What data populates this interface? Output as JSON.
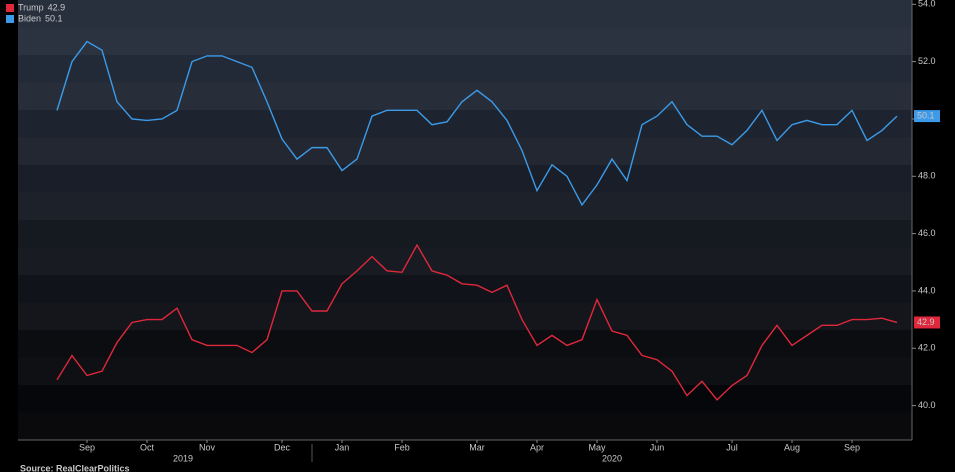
{
  "chart_data": {
    "type": "line",
    "categories": [
      null,
      null,
      "Sep",
      null,
      null,
      null,
      "Oct",
      null,
      null,
      null,
      "Nov",
      null,
      null,
      null,
      null,
      "Dec",
      null,
      null,
      null,
      "Jan",
      null,
      null,
      null,
      "Feb",
      null,
      null,
      null,
      null,
      "Mar",
      null,
      null,
      null,
      "Apr",
      null,
      null,
      null,
      "May",
      null,
      null,
      null,
      "Jun",
      null,
      null,
      null,
      null,
      "Jul",
      null,
      null,
      null,
      "Aug",
      null,
      null,
      null,
      "Sep",
      null,
      null,
      null
    ],
    "annotations": [
      "2019",
      "2020"
    ],
    "source": "Source: RealClearPolitics",
    "series": [
      {
        "name": "Trump",
        "color": "#e0283c",
        "values": [
          40.9,
          41.75,
          41.05,
          41.2,
          42.2,
          42.9,
          43.0,
          43.0,
          43.4,
          42.3,
          42.1,
          42.1,
          42.1,
          41.85,
          42.3,
          44.0,
          44.0,
          43.3,
          43.3,
          44.25,
          44.7,
          45.2,
          44.7,
          44.65,
          45.6,
          44.7,
          44.55,
          44.25,
          44.2,
          43.95,
          44.2,
          43.0,
          42.1,
          42.45,
          42.1,
          42.3,
          43.7,
          42.6,
          42.45,
          41.75,
          41.6,
          41.2,
          40.35,
          40.85,
          40.2,
          40.7,
          41.05,
          42.1,
          42.8,
          42.1,
          42.45,
          42.8,
          42.8,
          43.0,
          43.0,
          43.05,
          42.9
        ]
      },
      {
        "name": "Biden",
        "color": "#3c9ae8",
        "values": [
          50.3,
          52.0,
          52.7,
          52.4,
          50.6,
          50.0,
          49.95,
          50.0,
          50.3,
          52.0,
          52.2,
          52.2,
          52.0,
          51.8,
          50.6,
          49.3,
          48.6,
          49.0,
          49.0,
          48.2,
          48.6,
          50.1,
          50.3,
          50.3,
          50.3,
          49.8,
          49.9,
          50.6,
          51.0,
          50.6,
          49.95,
          48.9,
          47.5,
          48.4,
          48.0,
          47.0,
          47.7,
          48.6,
          47.85,
          49.8,
          50.1,
          50.6,
          49.8,
          49.4,
          49.4,
          49.1,
          49.6,
          50.3,
          49.25,
          49.8,
          49.95,
          49.8,
          49.8,
          50.3,
          49.25,
          49.6,
          50.1
        ]
      }
    ],
    "ylim": [
      38.8,
      54.15
    ],
    "yticks": [
      {
        "value": 40,
        "label": "40.0"
      },
      {
        "value": 42,
        "label": "42.0"
      },
      {
        "value": 44,
        "label": "44.0"
      },
      {
        "value": 46,
        "label": "46.0"
      },
      {
        "value": 48,
        "label": "48.0"
      },
      {
        "value": 50,
        "label": "50.0"
      },
      {
        "value": 52,
        "label": "52.0"
      },
      {
        "value": 54,
        "label": "54.0"
      }
    ],
    "legend": "top-left"
  }
}
